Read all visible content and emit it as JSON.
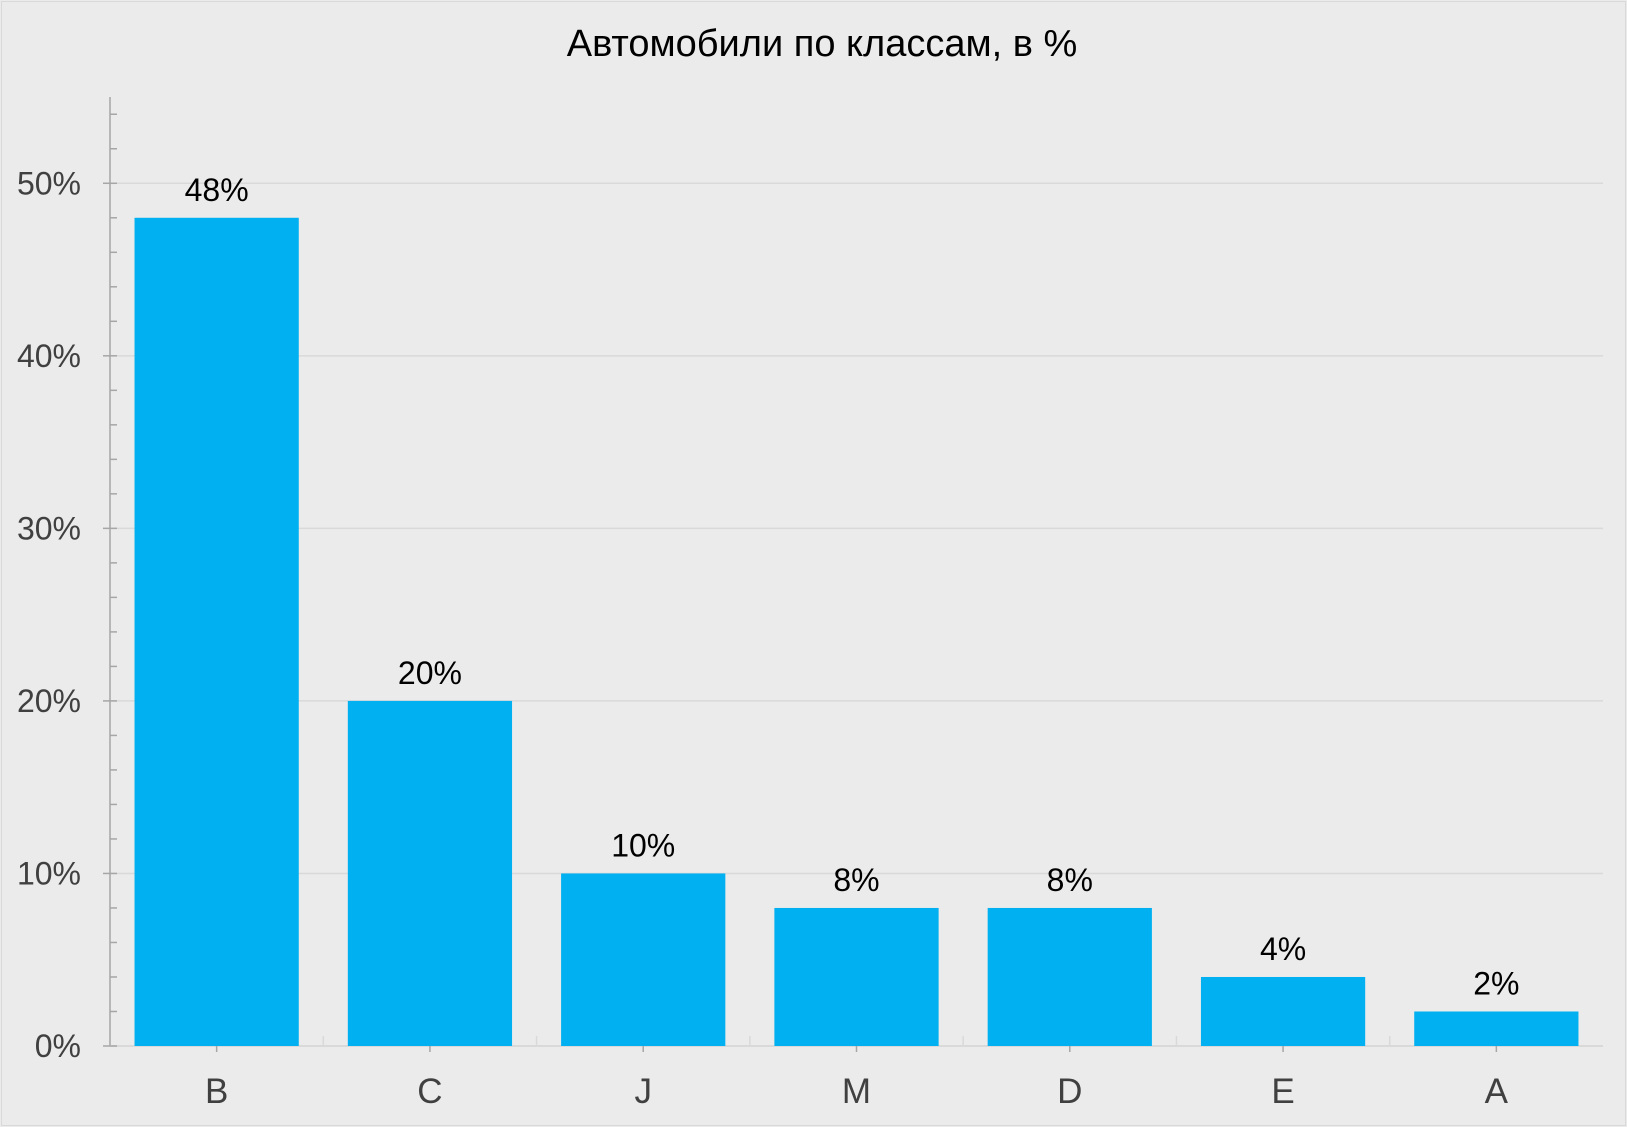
{
  "chart_data": {
    "type": "bar",
    "title": "Автомобили по классам, в %",
    "xlabel": "",
    "ylabel": "",
    "categories": [
      "B",
      "C",
      "J",
      "M",
      "D",
      "E",
      "A"
    ],
    "values": [
      48,
      20,
      10,
      8,
      8,
      4,
      2
    ],
    "data_labels": [
      "48%",
      "20%",
      "10%",
      "8%",
      "8%",
      "4%",
      "2%"
    ],
    "ylim": [
      0,
      55
    ],
    "y_ticks": [
      0,
      10,
      20,
      30,
      40,
      50
    ],
    "y_tick_labels": [
      "0%",
      "10%",
      "20%",
      "30%",
      "40%",
      "50%"
    ],
    "y_minor_tick_step": 2,
    "grid": true,
    "legend": "none"
  },
  "colors": {
    "background": "#ebebeb",
    "bar": "#00b0f0",
    "gridline": "#d9d9d9",
    "axis": "#a6a6a6",
    "tick_label": "#404040",
    "title": "#000000",
    "data_label": "#000000"
  }
}
